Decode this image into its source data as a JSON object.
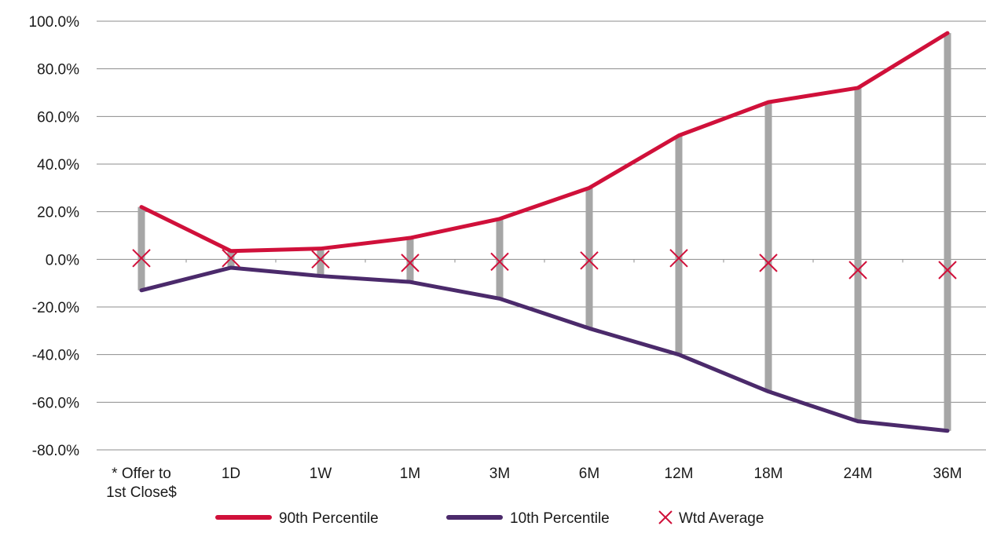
{
  "chart_data": {
    "type": "line",
    "title": "",
    "xlabel": "",
    "ylabel": "",
    "categories": [
      [
        "* Offer to",
        "1st Close$"
      ],
      [
        "1D"
      ],
      [
        "1W"
      ],
      [
        "1M"
      ],
      [
        "3M"
      ],
      [
        "6M"
      ],
      [
        "12M"
      ],
      [
        "18M"
      ],
      [
        "24M"
      ],
      [
        "36M"
      ]
    ],
    "y_ticks": [
      100,
      80,
      60,
      40,
      20,
      0,
      -20,
      -40,
      -60,
      -80
    ],
    "y_tick_labels": [
      "100.0%",
      "80.0%",
      "60.0%",
      "40.0%",
      "20.0%",
      "0.0%",
      "-20.0%",
      "-40.0%",
      "-60.0%",
      "-80.0%"
    ],
    "ylim": [
      -80,
      100
    ],
    "grid": "horizontal",
    "legend_position": "bottom",
    "series": [
      {
        "name": "90th Percentile",
        "kind": "line",
        "color": "#d0103a",
        "values": [
          22,
          3.5,
          4.5,
          9,
          17,
          30,
          52,
          66,
          72,
          95
        ]
      },
      {
        "name": "10th Percentile",
        "kind": "line",
        "color": "#4b2a6b",
        "values": [
          -13,
          -3.5,
          -7,
          -9.5,
          -16.5,
          -29,
          -40,
          -55.5,
          -68,
          -72
        ]
      },
      {
        "name": "Wtd Average",
        "kind": "marker",
        "marker": "x",
        "color": "#d0103a",
        "values": [
          0.5,
          0.5,
          0,
          -1.5,
          -1,
          -0.5,
          0.5,
          -1.5,
          -4.5,
          -4.5
        ]
      }
    ],
    "range_bar_color": "#a6a6a6"
  }
}
